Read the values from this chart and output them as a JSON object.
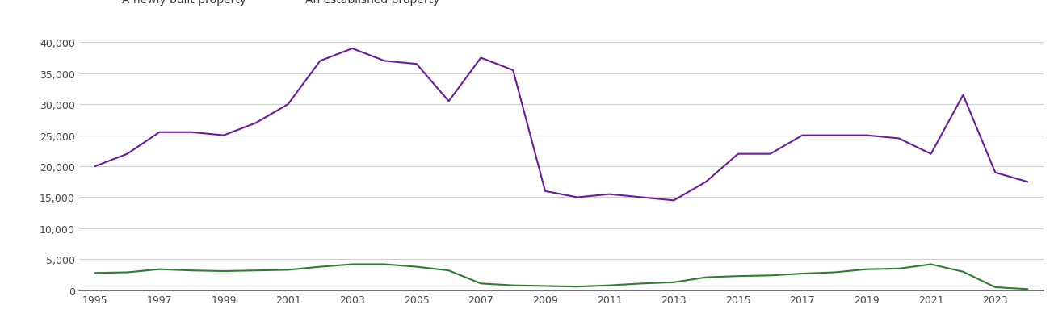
{
  "years": [
    1995,
    1996,
    1997,
    1998,
    1999,
    2000,
    2001,
    2002,
    2003,
    2004,
    2005,
    2006,
    2007,
    2008,
    2009,
    2010,
    2011,
    2012,
    2013,
    2014,
    2015,
    2016,
    2017,
    2018,
    2019,
    2020,
    2021,
    2022,
    2023,
    2024
  ],
  "new_homes": [
    2800,
    2900,
    3400,
    3200,
    3100,
    3200,
    3300,
    3800,
    4200,
    4200,
    3800,
    3200,
    1100,
    800,
    700,
    600,
    800,
    1100,
    1300,
    2100,
    2300,
    2400,
    2700,
    2900,
    3400,
    3500,
    4200,
    3000,
    500,
    200
  ],
  "established_homes": [
    20000,
    22000,
    25500,
    25500,
    25000,
    27000,
    30000,
    37000,
    39000,
    37000,
    36500,
    30500,
    37500,
    35500,
    16000,
    15000,
    15500,
    15000,
    14500,
    17500,
    22000,
    22000,
    25000,
    25000,
    25000,
    24500,
    22000,
    31500,
    19000,
    17500
  ],
  "new_homes_color": "#2e7d32",
  "established_homes_color": "#6a1b9a",
  "ylim": [
    0,
    40000
  ],
  "yticks": [
    0,
    5000,
    10000,
    15000,
    20000,
    25000,
    30000,
    35000,
    40000
  ],
  "ytick_labels": [
    "0",
    "5,000",
    "10,000",
    "15,000",
    "20,000",
    "25,000",
    "30,000",
    "35,000",
    "40,000"
  ],
  "xtick_labels": [
    "1995",
    "1997",
    "1999",
    "2001",
    "2003",
    "2005",
    "2007",
    "2009",
    "2011",
    "2013",
    "2015",
    "2017",
    "2019",
    "2021",
    "2023"
  ],
  "background_color": "#ffffff",
  "grid_color": "#d0d0d0",
  "figsize": [
    13.05,
    4.1
  ],
  "dpi": 100
}
